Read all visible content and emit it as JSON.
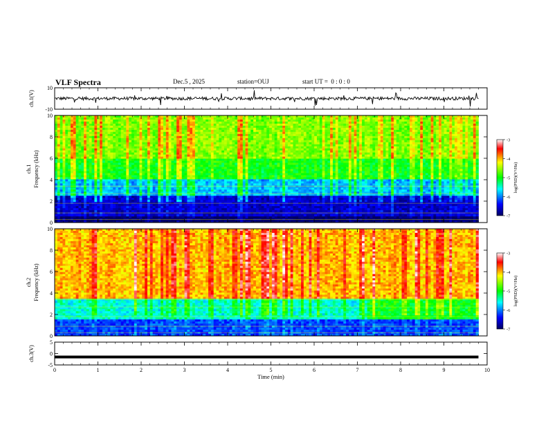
{
  "header": {
    "title": "VLF Spectra",
    "date": "Dec.5 , 2025",
    "station": "station=OUJ",
    "start": "start UT =  0 : 0 : 0"
  },
  "colors": {
    "colormap": [
      "#000080",
      "#0000ff",
      "#00ffff",
      "#00ff00",
      "#ffff00",
      "#ff0000",
      "#ffffff"
    ]
  },
  "chart_data": [
    {
      "type": "line",
      "panel": "waveform-ch1",
      "ylabel": "ch.1(V)",
      "yticks": [
        "10",
        "-10"
      ],
      "ylim": [
        -10,
        10
      ],
      "xlim": [
        0,
        10
      ],
      "series": [
        {
          "description_mean": 0.0,
          "values_approx_baseline": 0.0
        }
      ]
    },
    {
      "type": "heatmap",
      "panel": "spectrogram-ch1",
      "ylabel": "ch.1\nFrequency (kHz)",
      "ylabel_line1": "ch.1",
      "ylabel_line2": "Frequency (kHz)",
      "yticks": [
        "0",
        "2",
        "4",
        "6",
        "8",
        "10"
      ],
      "ylim": [
        0,
        10
      ],
      "xlim": [
        0,
        10
      ],
      "colorbar": {
        "label": "log(PSD)(V²/Hz)",
        "ticks": [
          "-3",
          "-4",
          "-5",
          "-6",
          "-7"
        ],
        "range": [
          -7,
          -3
        ]
      },
      "profile_low_band_kHz": [
        0,
        3
      ],
      "mean_log_psd_by_band": [
        {
          "band_kHz": [
            0,
            0.5
          ],
          "value": -7.0
        },
        {
          "band_kHz": [
            0.5,
            2.5
          ],
          "value": -6.6
        },
        {
          "band_kHz": [
            2.5,
            4
          ],
          "value": -5.8
        },
        {
          "band_kHz": [
            4,
            6
          ],
          "value": -5.0
        },
        {
          "band_kHz": [
            6,
            10
          ],
          "value": -4.6
        }
      ]
    },
    {
      "type": "heatmap",
      "panel": "spectrogram-ch2",
      "ylabel": "ch.2\nFrequency (kHz)",
      "ylabel_line1": "ch.2",
      "ylabel_line2": "Frequency (kHz)",
      "yticks": [
        "0",
        "2",
        "4",
        "6",
        "8",
        "10"
      ],
      "ylim": [
        0,
        10
      ],
      "xlim": [
        0,
        10
      ],
      "colorbar": {
        "label": "log(PSD)(V²/Hz)",
        "ticks": [
          "-3",
          "-4",
          "-5",
          "-6",
          "-7"
        ],
        "range": [
          -7,
          -3
        ]
      },
      "mean_log_psd_by_band": [
        {
          "band_kHz": [
            0,
            1.5
          ],
          "value": -6.2
        },
        {
          "band_kHz": [
            1.5,
            3.5
          ],
          "value": -5.5
        },
        {
          "band_kHz": [
            3.5,
            10
          ],
          "value": -4.0
        }
      ]
    },
    {
      "type": "line",
      "panel": "waveform-ch3",
      "ylabel": "ch.3(V)",
      "yticks": [
        "5",
        "0",
        "-5"
      ],
      "ylim": [
        -5,
        5
      ],
      "xlim": [
        0,
        10
      ],
      "series": [
        {
          "x": [
            0,
            9.8
          ],
          "values": [
            -1.5,
            -1.5
          ]
        }
      ]
    }
  ],
  "xaxis": {
    "label": "Time (min)",
    "ticks": [
      "0",
      "1",
      "2",
      "3",
      "4",
      "5",
      "6",
      "7",
      "8",
      "9",
      "10"
    ]
  }
}
